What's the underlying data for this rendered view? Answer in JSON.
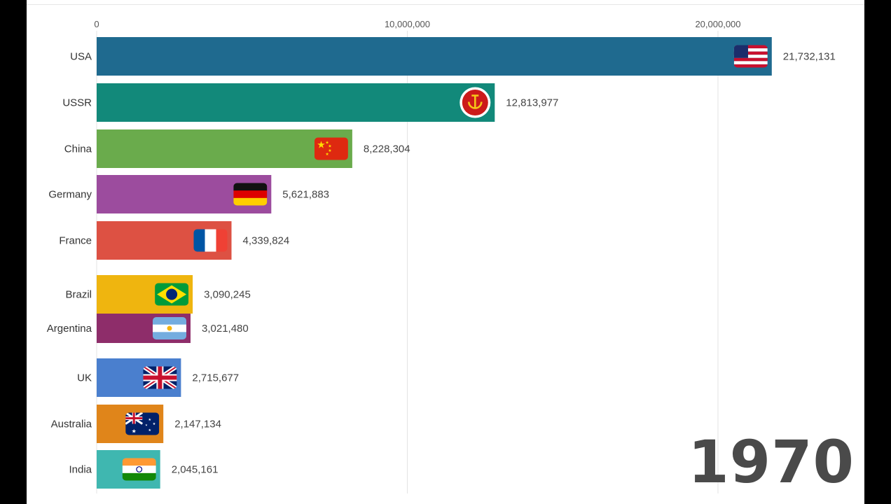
{
  "chart_data": {
    "type": "bar",
    "orientation": "horizontal",
    "title": "",
    "xlabel": "",
    "ylabel": "",
    "xlim": [
      0,
      22500000
    ],
    "grid": true,
    "ticks": [
      {
        "value": 0,
        "label": "0"
      },
      {
        "value": 10000000,
        "label": "10,000,000"
      },
      {
        "value": 20000000,
        "label": "20,000,000"
      }
    ],
    "categories": [
      "USA",
      "USSR",
      "China",
      "Germany",
      "France",
      "Brazil",
      "Argentina",
      "UK",
      "Australia",
      "India"
    ],
    "values": [
      21732131,
      12813977,
      8228304,
      5621883,
      4339824,
      3090245,
      3021480,
      2715677,
      2147134,
      2045161
    ],
    "value_labels": [
      "21,732,131",
      "12,813,977",
      "8,228,304",
      "5,621,883",
      "4,339,824",
      "3,090,245",
      "3,021,480",
      "2,715,677",
      "2,147,134",
      "2,045,161"
    ],
    "colors": [
      "#1f6a8f",
      "#12897a",
      "#6aab4c",
      "#9c4c9e",
      "#dd5143",
      "#efb50f",
      "#8e2d6a",
      "#4a7fce",
      "#e0851a",
      "#3fb7b0"
    ],
    "flags": [
      "usa-flag-icon",
      "ussr-emblem-icon",
      "china-flag-icon",
      "germany-flag-icon",
      "france-flag-icon",
      "brazil-flag-icon",
      "argentina-flag-icon",
      "uk-flag-icon",
      "australia-flag-icon",
      "india-flag-icon"
    ]
  },
  "year_label": "1970"
}
